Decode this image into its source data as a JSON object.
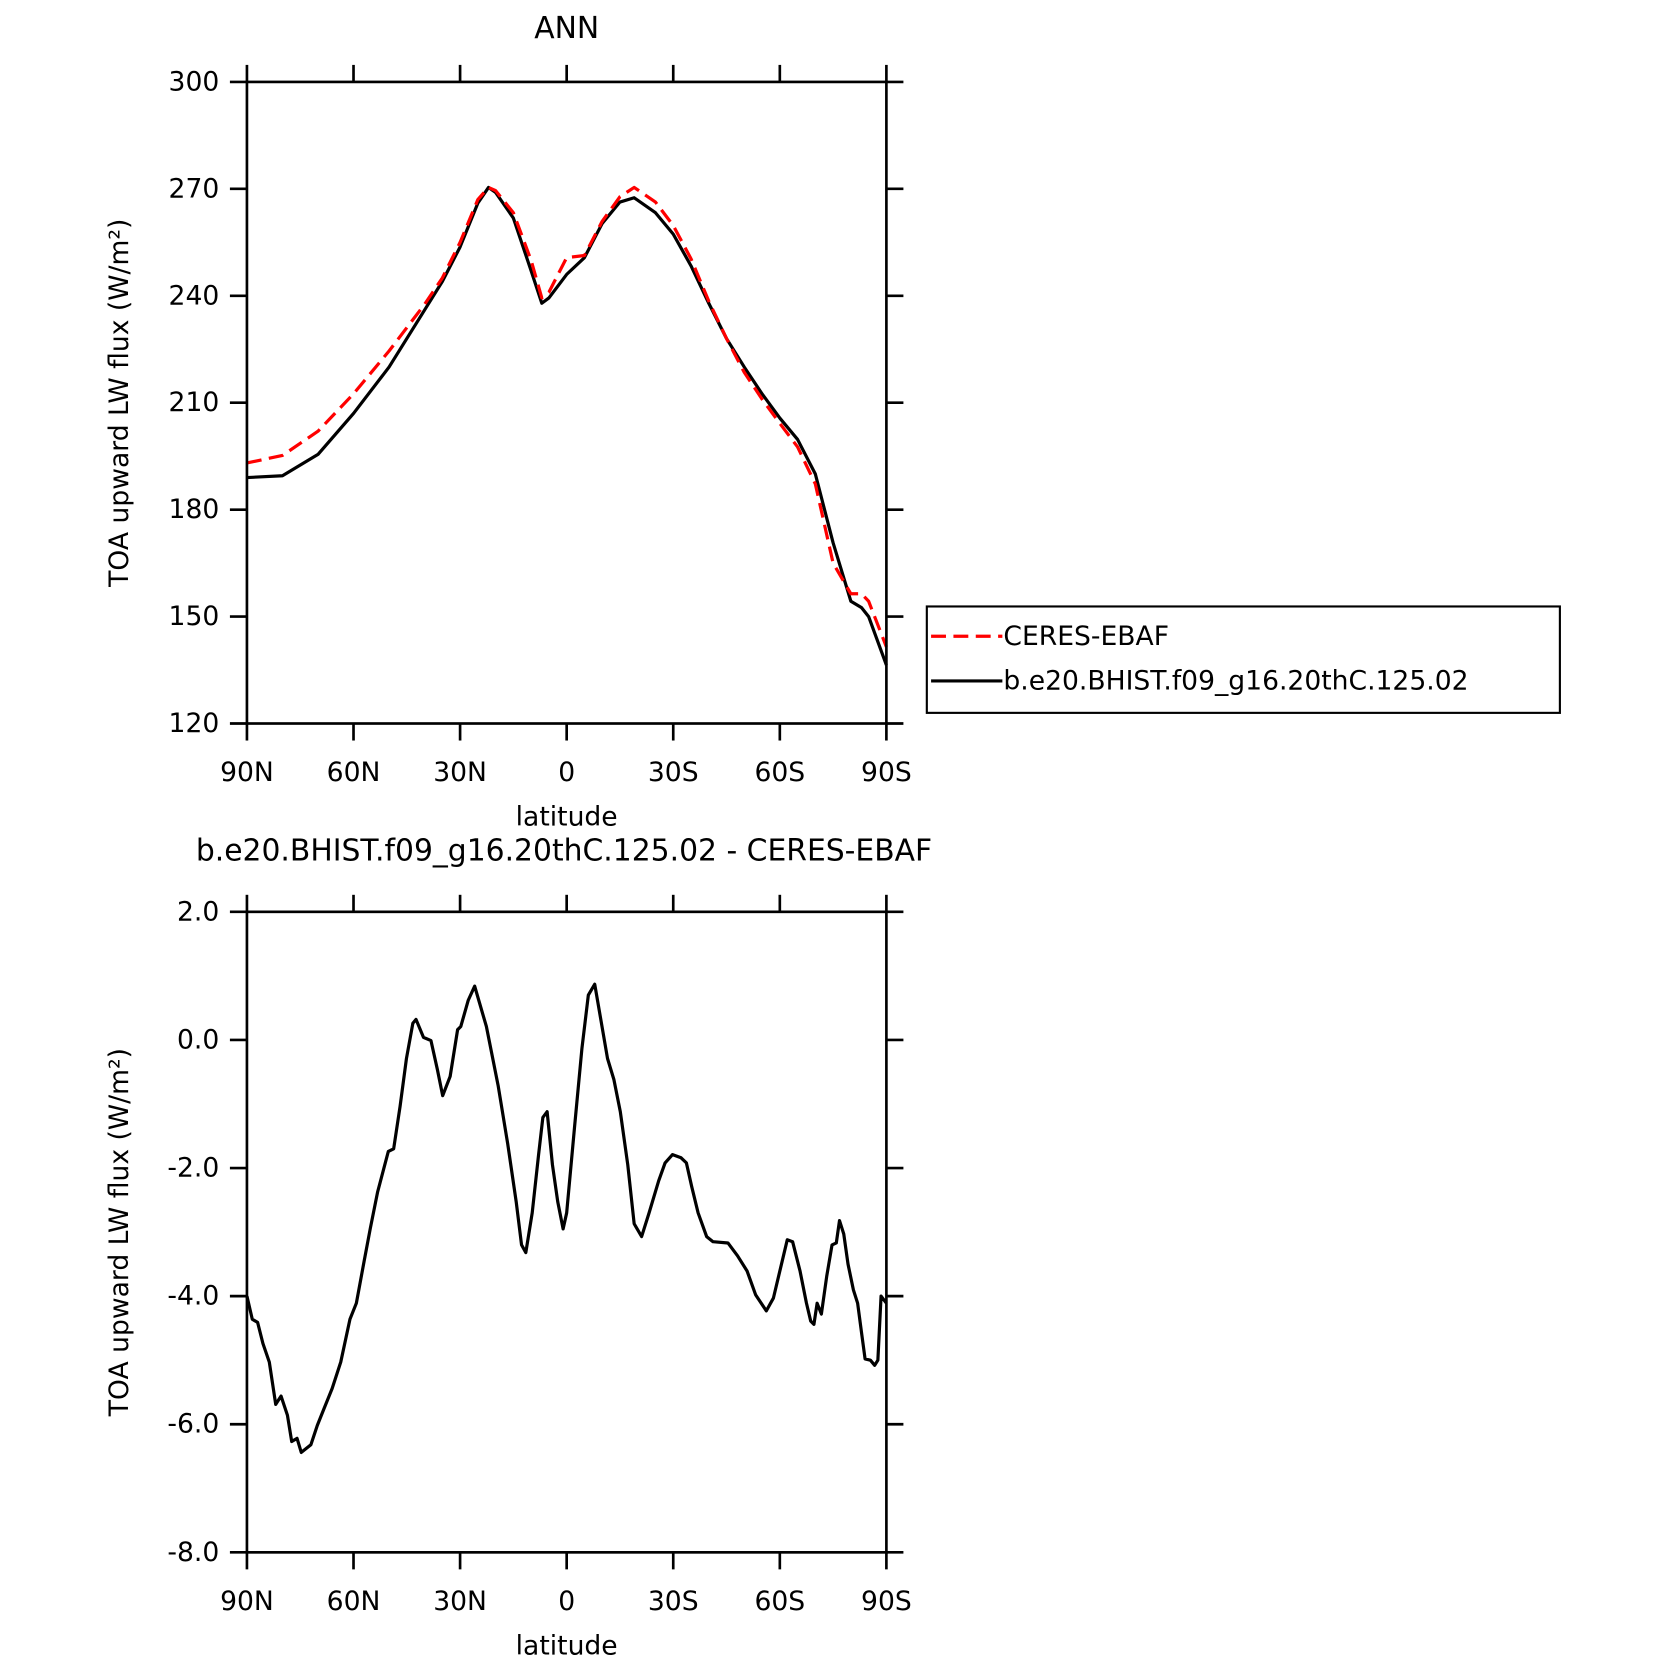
{
  "chart_data": [
    {
      "type": "line",
      "title": "ANN",
      "x_label": "latitude",
      "y_label": "TOA upward LW flux (W/m²)",
      "xlim": [
        90,
        -90
      ],
      "xticks": [
        {
          "value": 90,
          "label": "90N"
        },
        {
          "value": 60,
          "label": "60N"
        },
        {
          "value": 30,
          "label": "30N"
        },
        0,
        {
          "value": -30,
          "label": "30S"
        },
        {
          "value": -60,
          "label": "60S"
        },
        {
          "value": -90,
          "label": "90S"
        }
      ],
      "ylim": [
        120,
        300
      ],
      "yticks": [
        120,
        150,
        180,
        210,
        240,
        270,
        300
      ],
      "legend": "right",
      "x": [
        90,
        80,
        70,
        60,
        50,
        40,
        35,
        30,
        25,
        22,
        20,
        15,
        10,
        7,
        5,
        0,
        -5,
        -10,
        -15,
        -19,
        -25,
        -30,
        -35,
        -40,
        -45,
        -50,
        -55,
        -60,
        -65,
        -70,
        -75,
        -80,
        -83,
        -85,
        -90
      ],
      "series": [
        {
          "name": "CERES-EBAF",
          "color": "#ff0000",
          "line_style": "dashed",
          "values": [
            193.1,
            195.2,
            202,
            212.5,
            224.5,
            237.6,
            245,
            255,
            267,
            270.4,
            269.5,
            263.3,
            249.9,
            239.4,
            241,
            250.7,
            251.3,
            260.9,
            267.8,
            270.4,
            266.3,
            259.7,
            250.4,
            238.5,
            228,
            218.5,
            211,
            204.2,
            197.6,
            187.2,
            165,
            156.4,
            156.4,
            154.3,
            141.5
          ]
        },
        {
          "name": "b.e20.BHIST.f09_g16.20thC.125.02",
          "color": "#000000",
          "line_style": "solid",
          "values": [
            189,
            189.5,
            195.5,
            207,
            220,
            236,
            244,
            253.7,
            266,
            270.4,
            269,
            261.8,
            247,
            237.9,
            239.4,
            246,
            250.7,
            260.3,
            266.3,
            267.5,
            263.3,
            257.3,
            248.4,
            237.9,
            228,
            220,
            212.5,
            205.7,
            199.7,
            190,
            170.7,
            154.3,
            152.5,
            150,
            136.4
          ]
        }
      ]
    },
    {
      "type": "line",
      "title": "b.e20.BHIST.f09_g16.20thC.125.02 - CERES-EBAF",
      "x_label": "latitude",
      "y_label": "TOA upward LW flux (W/m²)",
      "xlim": [
        90,
        -90
      ],
      "xticks": [
        {
          "value": 90,
          "label": "90N"
        },
        {
          "value": 60,
          "label": "60N"
        },
        {
          "value": 30,
          "label": "30N"
        },
        0,
        {
          "value": -30,
          "label": "30S"
        },
        {
          "value": -60,
          "label": "60S"
        },
        {
          "value": -90,
          "label": "90S"
        }
      ],
      "ylim": [
        -8,
        2
      ],
      "yticks": [
        {
          "value": -8,
          "label": "-8.0"
        },
        {
          "value": -6,
          "label": "-6.0"
        },
        {
          "value": -4,
          "label": "-4.0"
        },
        {
          "value": -2,
          "label": "-2.0"
        },
        {
          "value": 0,
          "label": "0.0"
        },
        {
          "value": 2,
          "label": "2.0"
        }
      ],
      "x": [
        90,
        88.5,
        87,
        85.5,
        83.7,
        81.9,
        80.4,
        78.6,
        77.4,
        75.9,
        74.7,
        72,
        70.2,
        68.4,
        66,
        63.6,
        61,
        59.2,
        57,
        55.3,
        53.2,
        50.2,
        48.7,
        46.9,
        45.1,
        43.3,
        42.4,
        40.3,
        38.2,
        36.4,
        34.9,
        32.8,
        30.7,
        29.8,
        27.7,
        25.9,
        22.6,
        19.3,
        16.6,
        14.2,
        12.7,
        11.5,
        9.7,
        7.9,
        6.7,
        5.5,
        4,
        2.5,
        1,
        0,
        -2.2,
        -4.3,
        -6.1,
        -7.9,
        -9.7,
        -11.5,
        -13.3,
        -15.1,
        -17.2,
        -19,
        -21.1,
        -23.2,
        -25.9,
        -27.7,
        -29.8,
        -32.2,
        -33.7,
        -35.2,
        -37,
        -39.4,
        -41.2,
        -45.4,
        -48.1,
        -50.8,
        -53.2,
        -56.2,
        -58.2,
        -60,
        -62.1,
        -63.6,
        -65.7,
        -67.5,
        -68.7,
        -69.6,
        -70.5,
        -71.7,
        -73.2,
        -74.7,
        -75.9,
        -76.8,
        -78,
        -79.2,
        -80.7,
        -81.9,
        -83.1,
        -84,
        -85.5,
        -86.7,
        -87.6,
        -88.5,
        -90
      ],
      "color": "#000000",
      "values": [
        -4.0,
        -4.36,
        -4.41,
        -4.74,
        -5.03,
        -5.69,
        -5.56,
        -5.86,
        -6.27,
        -6.22,
        -6.44,
        -6.32,
        -6.02,
        -5.77,
        -5.44,
        -5.03,
        -4.36,
        -4.11,
        -3.45,
        -2.95,
        -2.37,
        -1.74,
        -1.7,
        -1.04,
        -0.29,
        0.26,
        0.32,
        0.04,
        -0.01,
        -0.46,
        -0.87,
        -0.57,
        0.16,
        0.21,
        0.62,
        0.84,
        0.21,
        -0.71,
        -1.62,
        -2.53,
        -3.2,
        -3.32,
        -2.7,
        -1.79,
        -1.21,
        -1.12,
        -1.95,
        -2.53,
        -2.95,
        -2.7,
        -1.37,
        -0.13,
        0.7,
        0.87,
        0.29,
        -0.29,
        -0.62,
        -1.12,
        -1.95,
        -2.87,
        -3.07,
        -2.7,
        -2.2,
        -1.92,
        -1.79,
        -1.84,
        -1.92,
        -2.29,
        -2.7,
        -3.07,
        -3.15,
        -3.17,
        -3.37,
        -3.61,
        -3.98,
        -4.23,
        -4.03,
        -3.61,
        -3.12,
        -3.15,
        -3.61,
        -4.11,
        -4.39,
        -4.44,
        -4.11,
        -4.28,
        -3.69,
        -3.2,
        -3.17,
        -2.82,
        -3.03,
        -3.5,
        -3.9,
        -4.11,
        -4.61,
        -4.98,
        -5.0,
        -5.08,
        -5.0,
        -4.0,
        -4.11
      ]
    }
  ]
}
